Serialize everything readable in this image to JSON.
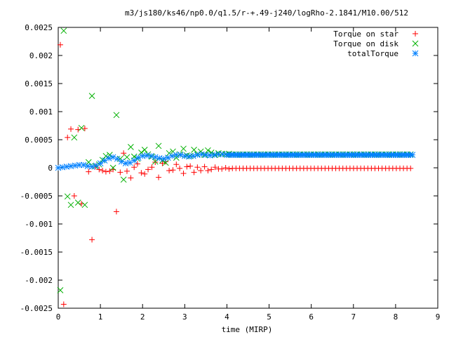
{
  "chart_data": {
    "type": "scatter",
    "title": "m3/js180/ks46/np0.0/q1.5/r-+.49-j240/logRho-2.1841/M10.00/512",
    "xlabel": "time (MIRP)",
    "ylabel": "",
    "xlim": [
      0,
      9
    ],
    "ylim": [
      -0.0025,
      0.0025
    ],
    "x_ticks": [
      "0",
      "1",
      "2",
      "3",
      "4",
      "5",
      "6",
      "7",
      "8",
      "9"
    ],
    "y_ticks": [
      "-0.0025",
      "-0.002",
      "-0.0015",
      "-0.001",
      "-0.0005",
      "0",
      "0.0005",
      "0.001",
      "0.0015",
      "0.002",
      "0.0025"
    ],
    "legend_position": "top-right",
    "grid": false,
    "series": [
      {
        "name": "Torque on star",
        "marker": "plus",
        "color": "#ff0000",
        "points": [
          [
            0.05,
            0.00219
          ],
          [
            0.13,
            -0.00243
          ],
          [
            0.22,
            0.00054
          ],
          [
            0.3,
            0.00069
          ],
          [
            0.38,
            -0.0005
          ],
          [
            0.47,
            0.00068
          ],
          [
            0.55,
            -0.00064
          ],
          [
            0.63,
            0.0007
          ],
          [
            0.72,
            -7e-05
          ],
          [
            0.8,
            -0.00128
          ],
          [
            0.88,
            2e-05
          ],
          [
            0.97,
            -3e-05
          ],
          [
            1.05,
            -5e-05
          ],
          [
            1.13,
            -7e-05
          ],
          [
            1.22,
            -6e-05
          ],
          [
            1.3,
            -3e-05
          ],
          [
            1.38,
            -0.00078
          ],
          [
            1.47,
            -8e-05
          ],
          [
            1.55,
            0.00026
          ],
          [
            1.63,
            -6e-05
          ],
          [
            1.72,
            -0.00018
          ],
          [
            1.8,
            1e-05
          ],
          [
            1.88,
            7e-05
          ],
          [
            1.97,
            -9e-05
          ],
          [
            2.05,
            -0.00011
          ],
          [
            2.13,
            -3e-05
          ],
          [
            2.22,
            1e-05
          ],
          [
            2.3,
            0.0001
          ],
          [
            2.38,
            -0.00017
          ],
          [
            2.47,
            8e-05
          ],
          [
            2.55,
            0.00011
          ],
          [
            2.63,
            -5e-05
          ],
          [
            2.72,
            -4e-05
          ],
          [
            2.8,
            6e-05
          ],
          [
            2.88,
            -1e-05
          ],
          [
            2.97,
            -0.0001
          ],
          [
            3.05,
            2e-05
          ],
          [
            3.13,
            3e-05
          ],
          [
            3.22,
            -8e-05
          ],
          [
            3.3,
            1e-05
          ],
          [
            3.38,
            -5e-05
          ],
          [
            3.47,
            2e-05
          ],
          [
            3.55,
            -5e-05
          ],
          [
            3.63,
            -3e-05
          ],
          [
            3.72,
            1e-05
          ],
          [
            3.8,
            -2e-05
          ],
          [
            3.88,
            -2e-05
          ],
          [
            3.97,
            0.0
          ],
          [
            4.05,
            -2e-05
          ]
        ],
        "tail": {
          "x_start": 4.13,
          "x_end": 8.4,
          "step": 0.0845,
          "y": -1e-05
        }
      },
      {
        "name": "Torque on disk",
        "marker": "cross",
        "color": "#00b000",
        "points": [
          [
            0.05,
            -0.00218
          ],
          [
            0.13,
            0.00244
          ],
          [
            0.22,
            -0.00051
          ],
          [
            0.3,
            -0.00066
          ],
          [
            0.38,
            0.00054
          ],
          [
            0.47,
            -0.00062
          ],
          [
            0.55,
            0.00071
          ],
          [
            0.63,
            -0.00066
          ],
          [
            0.72,
            0.0001
          ],
          [
            0.8,
            0.00128
          ],
          [
            0.88,
            3e-05
          ],
          [
            0.97,
            6e-05
          ],
          [
            1.05,
            0.00014
          ],
          [
            1.13,
            0.00021
          ],
          [
            1.22,
            0.00023
          ],
          [
            1.3,
            0.0
          ],
          [
            1.38,
            0.00094
          ],
          [
            1.47,
            0.00016
          ],
          [
            1.55,
            -0.00021
          ],
          [
            1.63,
            0.00019
          ],
          [
            1.72,
            0.00037
          ],
          [
            1.8,
            0.0002
          ],
          [
            1.88,
            0.00016
          ],
          [
            1.97,
            0.00027
          ],
          [
            2.05,
            0.00032
          ],
          [
            2.13,
            0.00024
          ],
          [
            2.22,
            0.0002
          ],
          [
            2.3,
            0.00011
          ],
          [
            2.38,
            0.00039
          ],
          [
            2.47,
            0.00013
          ],
          [
            2.55,
            9e-05
          ],
          [
            2.63,
            0.00026
          ],
          [
            2.72,
            0.00029
          ],
          [
            2.8,
            0.00018
          ],
          [
            2.88,
            0.00024
          ],
          [
            2.97,
            0.00034
          ],
          [
            3.05,
            0.00022
          ],
          [
            3.13,
            0.00021
          ],
          [
            3.22,
            0.00032
          ],
          [
            3.3,
            0.00024
          ],
          [
            3.38,
            0.00029
          ],
          [
            3.47,
            0.00023
          ],
          [
            3.55,
            0.00031
          ],
          [
            3.63,
            0.00027
          ],
          [
            3.72,
            0.00023
          ],
          [
            3.8,
            0.00026
          ],
          [
            3.88,
            0.00025
          ],
          [
            3.97,
            0.00024
          ],
          [
            4.05,
            0.00025
          ]
        ],
        "tail": {
          "x_start": 4.13,
          "x_end": 8.4,
          "step": 0.0845,
          "y": 0.00024
        }
      },
      {
        "name": "totalTorque",
        "marker": "star",
        "color": "#0080ff",
        "points": [
          [
            0.0,
            0.0
          ],
          [
            0.1,
            1e-05
          ],
          [
            0.2,
            2e-05
          ],
          [
            0.3,
            3e-05
          ],
          [
            0.4,
            4e-05
          ],
          [
            0.5,
            5e-05
          ],
          [
            0.6,
            5e-05
          ],
          [
            0.7,
            3e-05
          ],
          [
            0.8,
            2e-05
          ],
          [
            0.9,
            4e-05
          ],
          [
            1.0,
            8e-05
          ],
          [
            1.1,
            0.00013
          ],
          [
            1.2,
            0.00017
          ],
          [
            1.3,
            0.00019
          ],
          [
            1.4,
            0.00016
          ],
          [
            1.5,
            0.00011
          ],
          [
            1.6,
            8e-05
          ],
          [
            1.7,
            9e-05
          ],
          [
            1.8,
            0.00013
          ],
          [
            1.9,
            0.00018
          ],
          [
            2.0,
            0.00021
          ],
          [
            2.1,
            0.00022
          ],
          [
            2.2,
            0.00021
          ],
          [
            2.3,
            0.00019
          ],
          [
            2.4,
            0.00017
          ],
          [
            2.5,
            0.00016
          ],
          [
            2.6,
            0.00018
          ],
          [
            2.7,
            0.00021
          ],
          [
            2.8,
            0.00023
          ],
          [
            2.9,
            0.00023
          ],
          [
            3.0,
            0.00021
          ],
          [
            3.1,
            0.0002
          ],
          [
            3.2,
            0.00021
          ],
          [
            3.3,
            0.00023
          ],
          [
            3.4,
            0.00024
          ],
          [
            3.5,
            0.00023
          ],
          [
            3.6,
            0.00022
          ],
          [
            3.7,
            0.00023
          ],
          [
            3.8,
            0.00024
          ],
          [
            3.9,
            0.00024
          ],
          [
            4.0,
            0.00023
          ]
        ],
        "tail": {
          "x_start": 4.05,
          "x_end": 8.4,
          "step": 0.05,
          "y": 0.00023
        }
      }
    ]
  }
}
